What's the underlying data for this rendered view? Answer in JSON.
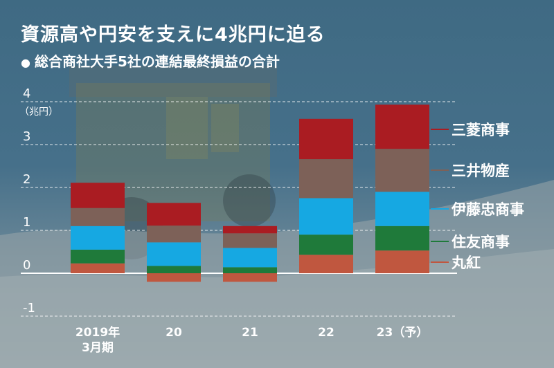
{
  "title": "資源高や円安を支えに4兆円に迫る",
  "subtitle": "総合商社大手5社の連結最終損益の合計",
  "bullet": "●",
  "chart_data": {
    "type": "bar",
    "stacked": true,
    "title": "資源高や円安を支えに4兆円に迫る",
    "subtitle": "総合商社大手5社の連結最終損益の合計",
    "unit_label": "（兆円）",
    "ylim": [
      -1,
      4
    ],
    "y_ticks": [
      4,
      3,
      2,
      1,
      0,
      -1
    ],
    "y_tick_labels": [
      "4",
      "3",
      "2",
      "1",
      "0",
      "-1"
    ],
    "grid": true,
    "legend_placement": "right",
    "categories": [
      "2019年\n3月期",
      "20",
      "21",
      "22",
      "23（予）"
    ],
    "series": [
      {
        "name": "丸紅",
        "color": "#c0573f",
        "values": [
          0.23,
          -0.2,
          -0.2,
          0.43,
          0.53
        ]
      },
      {
        "name": "住友商事",
        "color": "#1f7a3a",
        "values": [
          0.32,
          0.17,
          0.14,
          0.47,
          0.57
        ]
      },
      {
        "name": "伊藤忠商事",
        "color": "#16a8e2",
        "values": [
          0.55,
          0.55,
          0.45,
          0.85,
          0.8
        ]
      },
      {
        "name": "三井物産",
        "color": "#7d6158",
        "values": [
          0.42,
          0.39,
          0.34,
          0.91,
          1.0
        ]
      },
      {
        "name": "三菱商事",
        "color": "#aa1c22",
        "values": [
          0.59,
          0.53,
          0.17,
          0.94,
          1.03
        ]
      }
    ]
  }
}
